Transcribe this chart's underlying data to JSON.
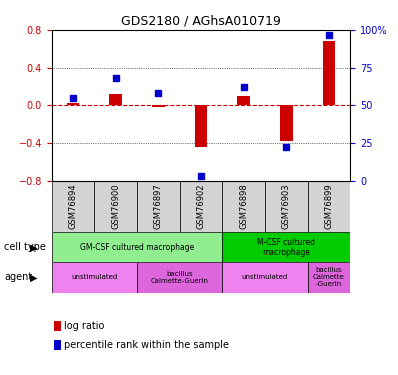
{
  "title": "GDS2180 / AGhsA010719",
  "samples": [
    "GSM76894",
    "GSM76900",
    "GSM76897",
    "GSM76902",
    "GSM76898",
    "GSM76903",
    "GSM76899"
  ],
  "log_ratio": [
    0.02,
    0.12,
    -0.02,
    -0.44,
    0.1,
    -0.38,
    0.68
  ],
  "percentile_rank": [
    55,
    68,
    58,
    3,
    62,
    22,
    97
  ],
  "left_ylim": [
    -0.8,
    0.8
  ],
  "right_ylim": [
    0,
    100
  ],
  "left_yticks": [
    -0.8,
    -0.4,
    0,
    0.4,
    0.8
  ],
  "right_yticks": [
    0,
    25,
    50,
    75,
    100
  ],
  "bar_width": 0.35,
  "log_ratio_color": "#cc0000",
  "percentile_color": "#0000cc",
  "zero_line_color": "#cc0000",
  "grid_color": "#000000",
  "cell_type_groups": [
    {
      "label": "GM-CSF cultured macrophage",
      "start": 0,
      "end": 3,
      "color": "#90ee90"
    },
    {
      "label": "M-CSF cultured\nmacrophage",
      "start": 4,
      "end": 6,
      "color": "#00cc00"
    }
  ],
  "agent_groups": [
    {
      "label": "unstimulated",
      "start": 0,
      "end": 1,
      "color": "#ee82ee"
    },
    {
      "label": "bacillus\nCalmette-Guerin",
      "start": 2,
      "end": 3,
      "color": "#dd66dd"
    },
    {
      "label": "unstimulated",
      "start": 4,
      "end": 5,
      "color": "#ee82ee"
    },
    {
      "label": "bacillus\nCalmette\n-Guerin",
      "start": 6,
      "end": 6,
      "color": "#dd66dd"
    }
  ],
  "sample_bg_color": "#d3d3d3",
  "left_ylabel_color": "#cc0000",
  "right_ylabel_color": "#0000cc",
  "cell_type_label": "cell type",
  "agent_label": "agent",
  "legend_items": [
    "log ratio",
    "percentile rank within the sample"
  ]
}
